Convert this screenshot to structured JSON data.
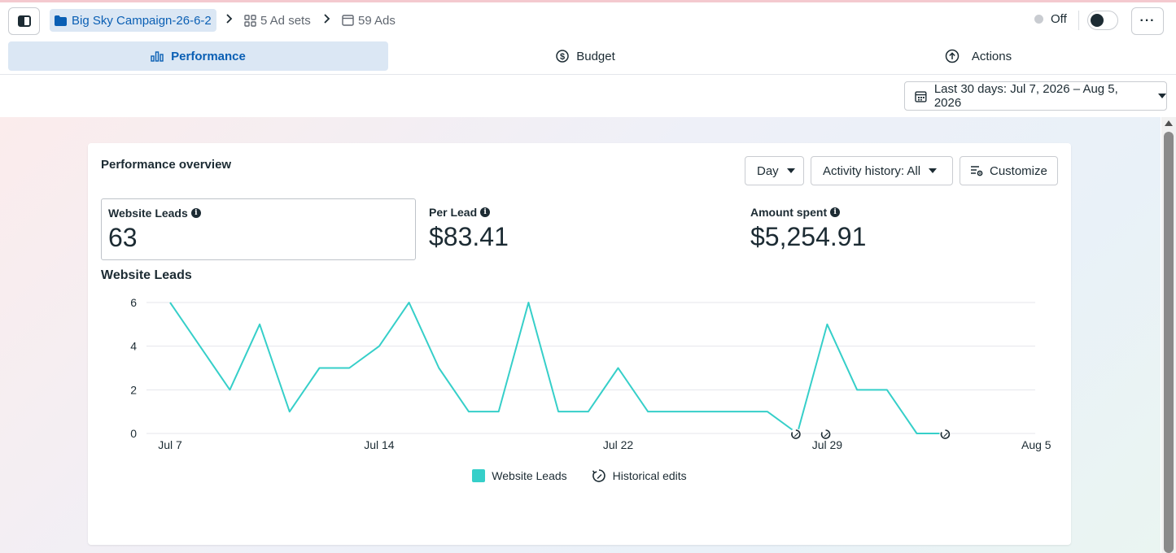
{
  "header": {
    "campaign_name": "Big Sky Campaign-26-6-2",
    "ad_sets_label": "5 Ad sets",
    "ads_label": "59 Ads",
    "status_label": "Off"
  },
  "tabs": [
    {
      "label": "Performance",
      "icon": "bar-chart-icon",
      "active": true
    },
    {
      "label": "Budget",
      "icon": "dollar-circle-icon",
      "active": false
    },
    {
      "label": "Actions",
      "icon": "arrow-up-circle-icon",
      "active": false
    }
  ],
  "date_range": {
    "label": "Last 30 days: Jul 7, 2026 – Aug 5, 2026"
  },
  "overview": {
    "title": "Performance overview",
    "granularity": "Day",
    "activity_filter": "Activity history: All",
    "customize_label": "Customize"
  },
  "metrics": [
    {
      "label": "Website Leads",
      "value": "63",
      "selected": true
    },
    {
      "label": "Per Lead",
      "value": "$83.41",
      "selected": false
    },
    {
      "label": "Amount spent",
      "value": "$5,254.91",
      "selected": false
    }
  ],
  "colors": {
    "accent": "#0a5fb4",
    "series": "#36cfc9",
    "tab_active_bg": "#dbe7f4"
  },
  "chart_data": {
    "type": "line",
    "title": "Website Leads",
    "x_tick_labels": [
      "Jul 7",
      "Jul 14",
      "Jul 22",
      "Jul 29",
      "Aug 5"
    ],
    "x_tick_day_index": [
      0,
      7,
      15,
      22,
      29
    ],
    "y_ticks": [
      0,
      2,
      4,
      6
    ],
    "ylim": [
      0,
      6
    ],
    "grid": true,
    "series": [
      {
        "name": "Website Leads",
        "color": "#36cfc9",
        "x": [
          "Jul 7",
          "Jul 8",
          "Jul 9",
          "Jul 10",
          "Jul 11",
          "Jul 12",
          "Jul 13",
          "Jul 14",
          "Jul 15",
          "Jul 16",
          "Jul 17",
          "Jul 18",
          "Jul 19",
          "Jul 20",
          "Jul 21",
          "Jul 22",
          "Jul 23",
          "Jul 24",
          "Jul 25",
          "Jul 26",
          "Jul 27",
          "Jul 28",
          "Jul 29",
          "Jul 30",
          "Jul 31",
          "Aug 1",
          "Aug 2"
        ],
        "values": [
          6,
          4,
          2,
          5,
          1,
          3,
          3,
          4,
          6,
          3,
          1,
          1,
          6,
          1,
          1,
          3,
          1,
          1,
          1,
          1,
          1,
          0,
          5,
          2,
          2,
          0,
          0
        ]
      }
    ],
    "historical_edit_days": [
      "Jul 28",
      "Jul 29",
      "Aug 2"
    ],
    "historical_edit_day_index": [
      20.95,
      21.95,
      25.95
    ],
    "legend": [
      "Website Leads",
      "Historical edits"
    ],
    "legend_position": "bottom-center"
  }
}
